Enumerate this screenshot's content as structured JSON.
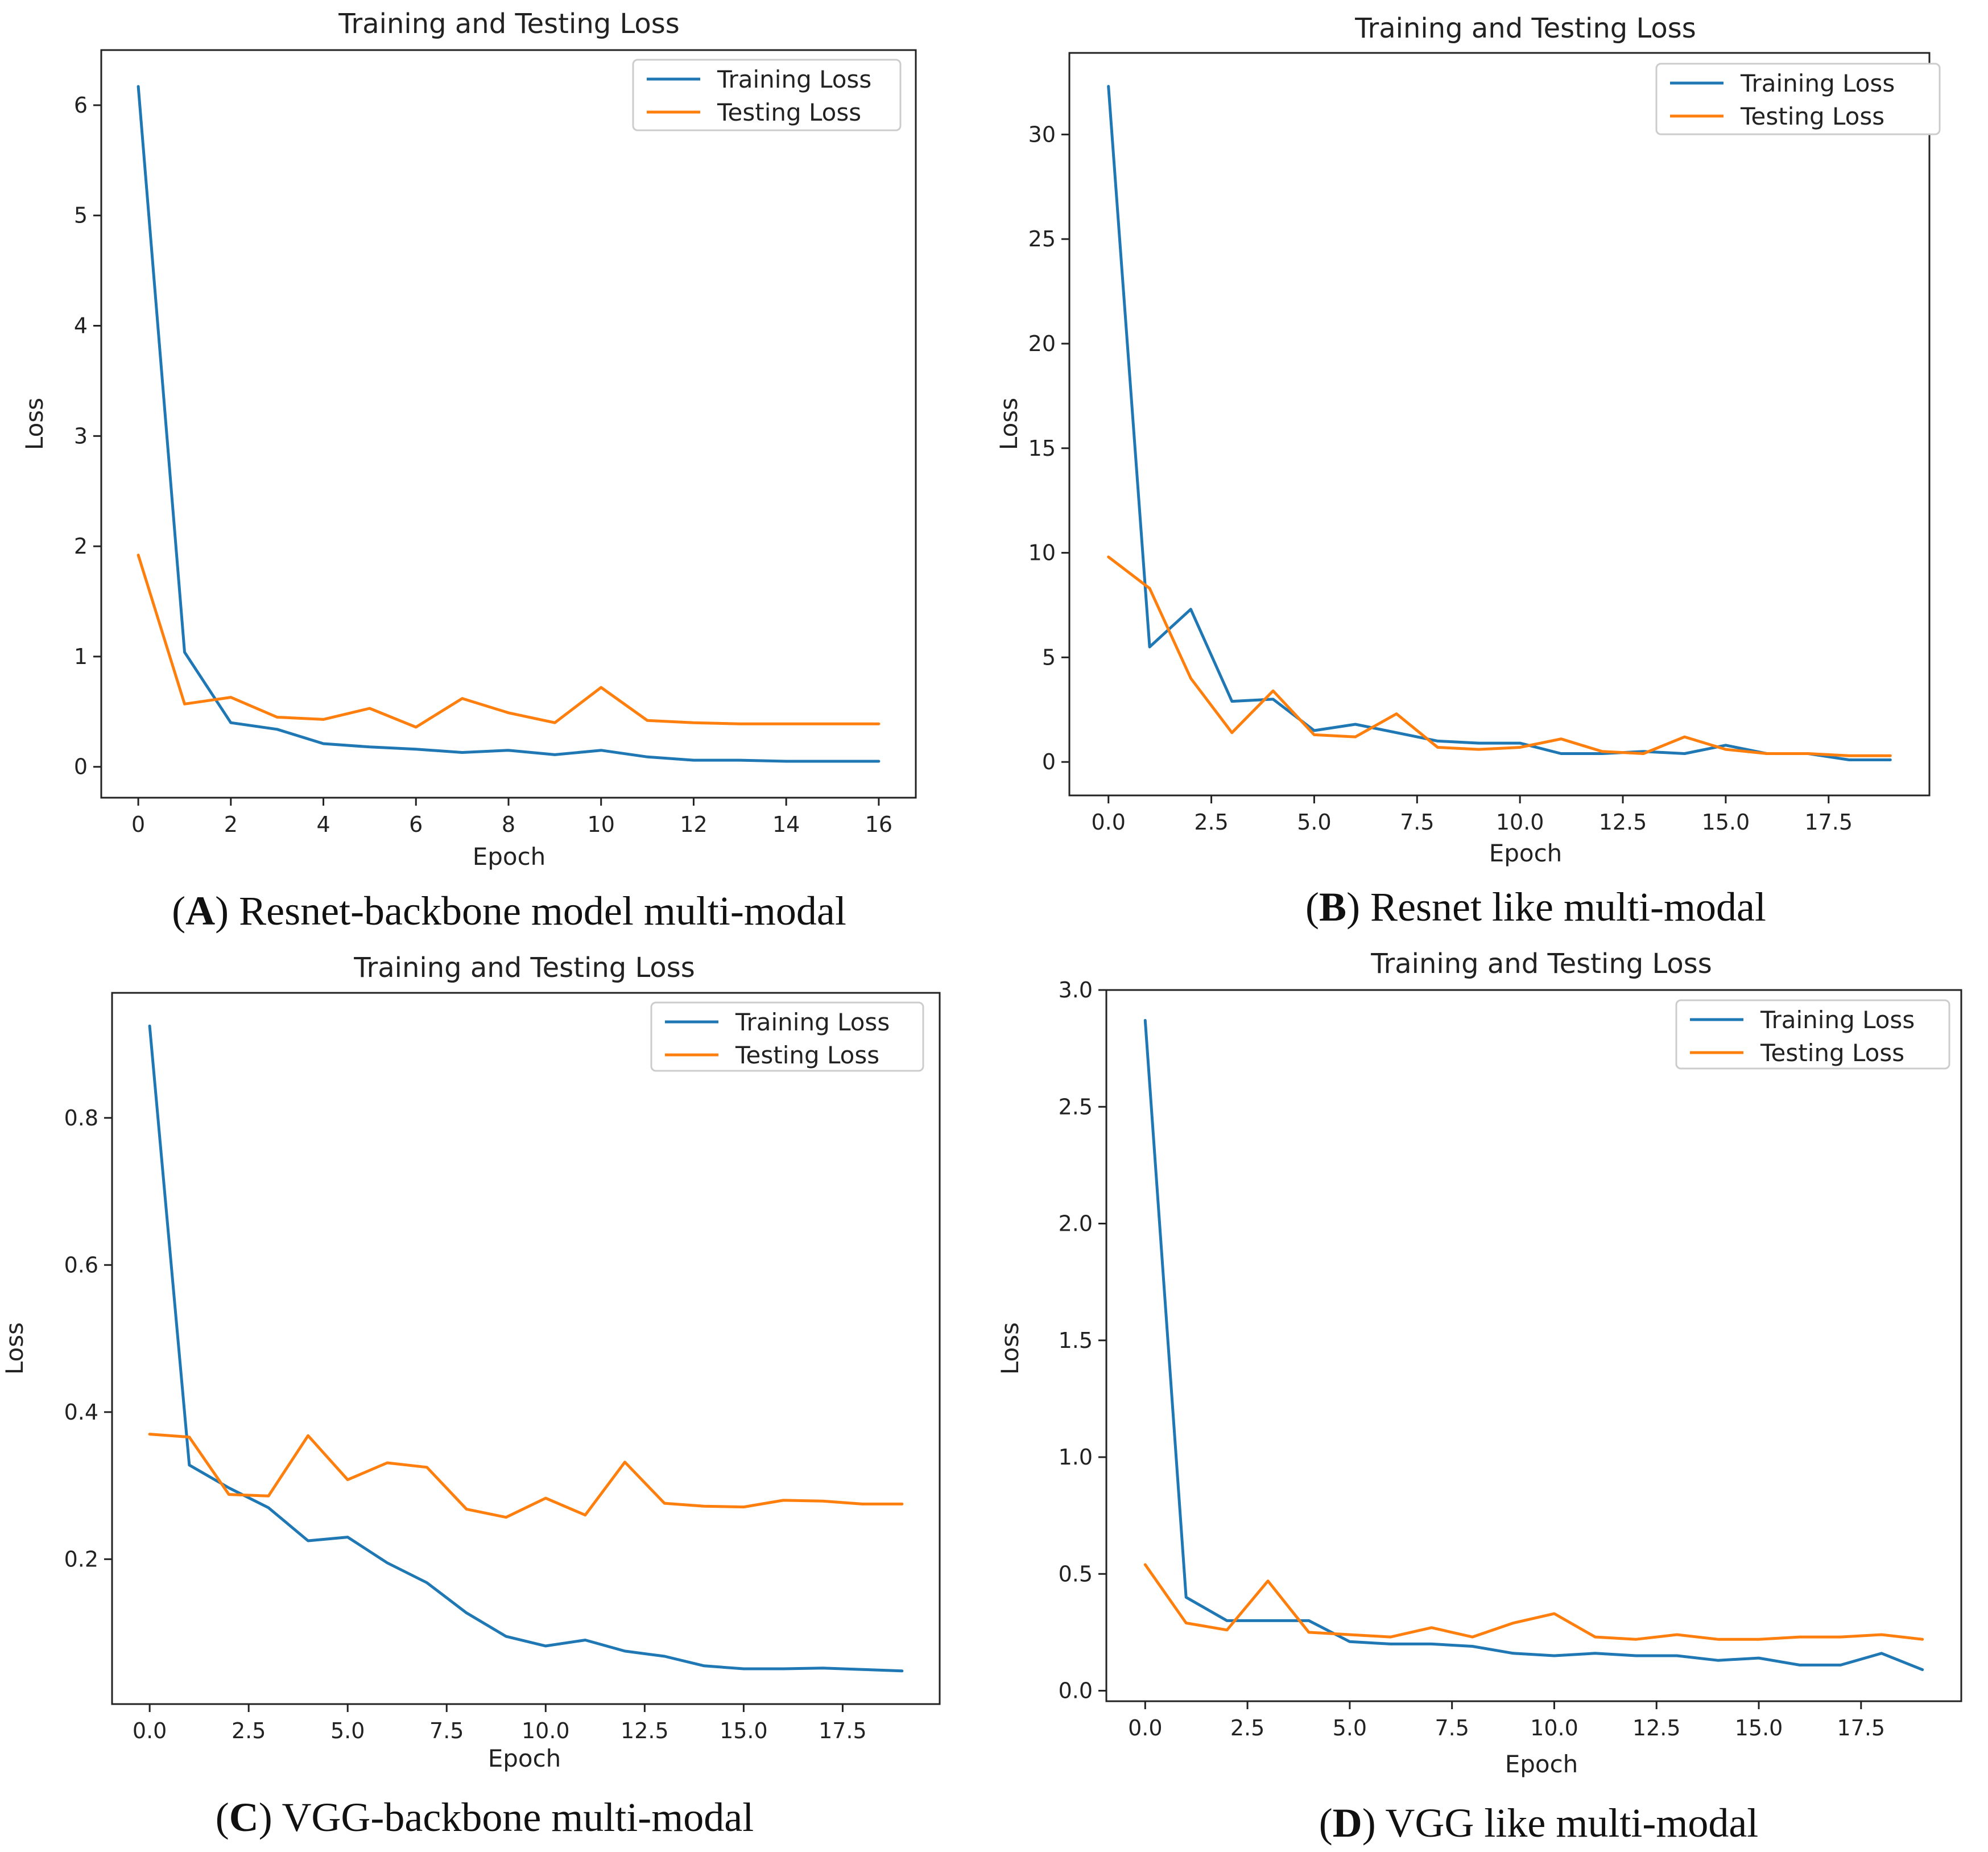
{
  "colors": {
    "training": "#1f77b4",
    "testing": "#ff7f0e"
  },
  "chart_data": [
    {
      "id": "A",
      "type": "line",
      "title": "Training and Testing Loss",
      "xlabel": "Epoch",
      "ylabel": "Loss",
      "caption_letter": "A",
      "caption_text": "Resnet-backbone model multi-modal",
      "legend": "top-right",
      "xlim": [
        -0.8,
        16.8
      ],
      "ylim": [
        -0.28,
        6.5
      ],
      "xticks": [
        0,
        2,
        4,
        6,
        8,
        10,
        12,
        14,
        16
      ],
      "xtick_labels": [
        "0",
        "2",
        "4",
        "6",
        "8",
        "10",
        "12",
        "14",
        "16"
      ],
      "yticks": [
        0,
        1,
        2,
        3,
        4,
        5,
        6
      ],
      "ytick_labels": [
        "0",
        "1",
        "2",
        "3",
        "4",
        "5",
        "6"
      ],
      "x": [
        0,
        1,
        2,
        3,
        4,
        5,
        6,
        7,
        8,
        9,
        10,
        11,
        12,
        13,
        14,
        15,
        16
      ],
      "series": [
        {
          "name": "Training Loss",
          "values": [
            6.17,
            1.04,
            0.4,
            0.34,
            0.21,
            0.18,
            0.16,
            0.13,
            0.15,
            0.11,
            0.15,
            0.09,
            0.06,
            0.06,
            0.05,
            0.05,
            0.05
          ]
        },
        {
          "name": "Testing Loss",
          "values": [
            1.92,
            0.57,
            0.63,
            0.45,
            0.43,
            0.53,
            0.36,
            0.62,
            0.49,
            0.4,
            0.72,
            0.42,
            0.4,
            0.39,
            0.39,
            0.39,
            0.39
          ]
        }
      ]
    },
    {
      "id": "B",
      "type": "line",
      "title": "Training and Testing Loss",
      "xlabel": "Epoch",
      "ylabel": "Loss",
      "caption_letter": "B",
      "caption_text": "Resnet like multi-modal",
      "legend": "top-right",
      "xlim": [
        -0.95,
        19.95
      ],
      "ylim": [
        -1.6,
        33.9
      ],
      "xticks": [
        0,
        2.5,
        5,
        7.5,
        10,
        12.5,
        15,
        17.5
      ],
      "xtick_labels": [
        "0.0",
        "2.5",
        "5.0",
        "7.5",
        "10.0",
        "12.5",
        "15.0",
        "17.5"
      ],
      "yticks": [
        0,
        5,
        10,
        15,
        20,
        25,
        30
      ],
      "ytick_labels": [
        "0",
        "5",
        "10",
        "15",
        "20",
        "25",
        "30"
      ],
      "x": [
        0,
        1,
        2,
        3,
        4,
        5,
        6,
        7,
        8,
        9,
        10,
        11,
        12,
        13,
        14,
        15,
        16,
        17,
        18,
        19
      ],
      "series": [
        {
          "name": "Training Loss",
          "values": [
            32.3,
            5.5,
            7.3,
            2.9,
            3.0,
            1.5,
            1.8,
            1.4,
            1.0,
            0.9,
            0.9,
            0.4,
            0.4,
            0.5,
            0.4,
            0.8,
            0.4,
            0.4,
            0.1,
            0.1
          ]
        },
        {
          "name": "Testing Loss",
          "values": [
            9.8,
            8.3,
            4.0,
            1.4,
            3.4,
            1.3,
            1.2,
            2.3,
            0.7,
            0.6,
            0.7,
            1.1,
            0.5,
            0.4,
            1.2,
            0.6,
            0.4,
            0.4,
            0.3,
            0.3
          ]
        }
      ]
    },
    {
      "id": "C",
      "type": "line",
      "title": "Training and Testing Loss",
      "xlabel": "Epoch",
      "ylabel": "Loss",
      "caption_letter": "C",
      "caption_text": "VGG-backbone multi-modal",
      "legend": "top-right",
      "xlim": [
        -0.95,
        19.95
      ],
      "ylim": [
        0.003,
        0.97
      ],
      "xticks": [
        0,
        2.5,
        5,
        7.5,
        10,
        12.5,
        15,
        17.5
      ],
      "xtick_labels": [
        "0.0",
        "2.5",
        "5.0",
        "7.5",
        "10.0",
        "12.5",
        "15.0",
        "17.5"
      ],
      "yticks": [
        0.2,
        0.4,
        0.6,
        0.8
      ],
      "ytick_labels": [
        "0.2",
        "0.4",
        "0.6",
        "0.8"
      ],
      "x": [
        0,
        1,
        2,
        3,
        4,
        5,
        6,
        7,
        8,
        9,
        10,
        11,
        12,
        13,
        14,
        15,
        16,
        17,
        18,
        19
      ],
      "series": [
        {
          "name": "Training Loss",
          "values": [
            0.925,
            0.328,
            0.297,
            0.27,
            0.225,
            0.23,
            0.195,
            0.168,
            0.127,
            0.095,
            0.082,
            0.09,
            0.075,
            0.068,
            0.055,
            0.051,
            0.051,
            0.052,
            0.05,
            0.048
          ]
        },
        {
          "name": "Testing Loss",
          "values": [
            0.37,
            0.366,
            0.288,
            0.286,
            0.368,
            0.308,
            0.331,
            0.325,
            0.268,
            0.257,
            0.283,
            0.26,
            0.332,
            0.276,
            0.272,
            0.271,
            0.28,
            0.279,
            0.275,
            0.275
          ]
        }
      ]
    },
    {
      "id": "D",
      "type": "line",
      "title": "Training and Testing Loss",
      "xlabel": "Epoch",
      "ylabel": "Loss",
      "caption_letter": "D",
      "caption_text": "VGG like multi-modal",
      "legend": "top-right",
      "xlim": [
        -0.95,
        19.95
      ],
      "ylim": [
        -0.045,
        3.0
      ],
      "xticks": [
        0,
        2.5,
        5,
        7.5,
        10,
        12.5,
        15,
        17.5
      ],
      "xtick_labels": [
        "0.0",
        "2.5",
        "5.0",
        "7.5",
        "10.0",
        "12.5",
        "15.0",
        "17.5"
      ],
      "yticks": [
        0,
        0.5,
        1.0,
        1.5,
        2.0,
        2.5,
        3.0
      ],
      "ytick_labels": [
        "0.0",
        "0.5",
        "1.0",
        "1.5",
        "2.0",
        "2.5",
        "3.0"
      ],
      "x": [
        0,
        1,
        2,
        3,
        4,
        5,
        6,
        7,
        8,
        9,
        10,
        11,
        12,
        13,
        14,
        15,
        16,
        17,
        18,
        19
      ],
      "series": [
        {
          "name": "Training Loss",
          "values": [
            2.87,
            0.4,
            0.3,
            0.3,
            0.3,
            0.21,
            0.2,
            0.2,
            0.19,
            0.16,
            0.15,
            0.16,
            0.15,
            0.15,
            0.13,
            0.14,
            0.11,
            0.11,
            0.16,
            0.09
          ]
        },
        {
          "name": "Testing Loss",
          "values": [
            0.54,
            0.29,
            0.26,
            0.47,
            0.25,
            0.24,
            0.23,
            0.27,
            0.23,
            0.29,
            0.33,
            0.23,
            0.22,
            0.24,
            0.22,
            0.22,
            0.23,
            0.23,
            0.24,
            0.22
          ]
        }
      ]
    }
  ]
}
